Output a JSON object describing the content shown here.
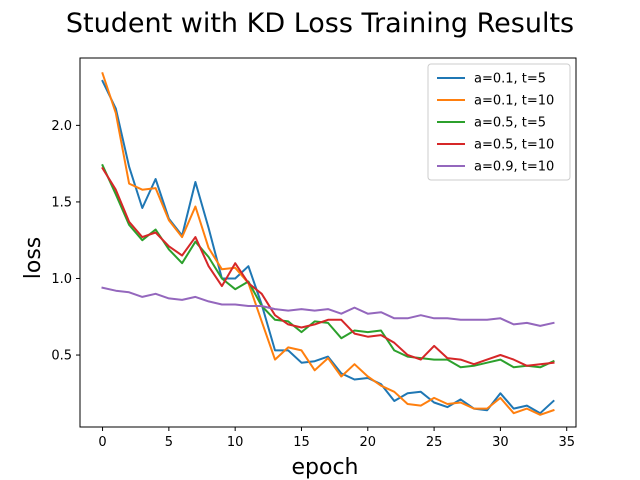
{
  "chart_data": {
    "type": "line",
    "title": "Student with KD Loss Training Results",
    "xlabel": "epoch",
    "ylabel": "loss",
    "xlim": [
      -1.7,
      35.7
    ],
    "ylim": [
      0.03,
      2.44
    ],
    "xticks": [
      0,
      5,
      10,
      15,
      20,
      25,
      30,
      35
    ],
    "yticks": [
      0.5,
      1.0,
      1.5,
      2.0
    ],
    "ytick_labels": [
      "0.5",
      "1.0",
      "1.5",
      "2.0"
    ],
    "grid": false,
    "legend_position": "top-right",
    "x": [
      0,
      1,
      2,
      3,
      4,
      5,
      6,
      7,
      8,
      9,
      10,
      11,
      12,
      13,
      14,
      15,
      16,
      17,
      18,
      19,
      20,
      21,
      22,
      23,
      24,
      25,
      26,
      27,
      28,
      29,
      30,
      31,
      32,
      33,
      34
    ],
    "series": [
      {
        "name": "a=0.1, t=5",
        "color": "#1f77b4",
        "values": [
          2.29,
          2.11,
          1.73,
          1.46,
          1.65,
          1.39,
          1.28,
          1.63,
          1.33,
          1.0,
          1.0,
          1.08,
          0.83,
          0.53,
          0.53,
          0.45,
          0.46,
          0.49,
          0.38,
          0.34,
          0.35,
          0.31,
          0.2,
          0.25,
          0.26,
          0.19,
          0.16,
          0.21,
          0.15,
          0.14,
          0.25,
          0.15,
          0.17,
          0.12,
          0.2
        ]
      },
      {
        "name": "a=0.1, t=10",
        "color": "#ff7f0e",
        "values": [
          2.34,
          2.08,
          1.62,
          1.58,
          1.59,
          1.38,
          1.27,
          1.47,
          1.2,
          1.06,
          1.07,
          0.97,
          0.72,
          0.47,
          0.55,
          0.53,
          0.4,
          0.48,
          0.36,
          0.44,
          0.36,
          0.3,
          0.26,
          0.18,
          0.17,
          0.22,
          0.18,
          0.19,
          0.15,
          0.15,
          0.22,
          0.12,
          0.15,
          0.11,
          0.14
        ]
      },
      {
        "name": "a=0.5, t=5",
        "color": "#2ca02c",
        "values": [
          1.74,
          1.55,
          1.35,
          1.25,
          1.32,
          1.19,
          1.1,
          1.24,
          1.14,
          1.0,
          0.93,
          0.98,
          0.82,
          0.73,
          0.72,
          0.65,
          0.72,
          0.71,
          0.61,
          0.66,
          0.65,
          0.66,
          0.53,
          0.49,
          0.48,
          0.47,
          0.47,
          0.42,
          0.43,
          0.45,
          0.47,
          0.42,
          0.43,
          0.42,
          0.46
        ]
      },
      {
        "name": "a=0.5, t=10",
        "color": "#d62728",
        "values": [
          1.72,
          1.58,
          1.37,
          1.27,
          1.3,
          1.21,
          1.15,
          1.27,
          1.08,
          0.95,
          1.1,
          0.97,
          0.9,
          0.76,
          0.7,
          0.68,
          0.7,
          0.73,
          0.73,
          0.64,
          0.62,
          0.63,
          0.58,
          0.5,
          0.47,
          0.56,
          0.48,
          0.47,
          0.44,
          0.47,
          0.5,
          0.47,
          0.43,
          0.44,
          0.45
        ]
      },
      {
        "name": "a=0.9, t=10",
        "color": "#9467bd",
        "values": [
          0.94,
          0.92,
          0.91,
          0.88,
          0.9,
          0.87,
          0.86,
          0.88,
          0.85,
          0.83,
          0.83,
          0.82,
          0.82,
          0.8,
          0.79,
          0.8,
          0.79,
          0.8,
          0.77,
          0.81,
          0.77,
          0.78,
          0.74,
          0.74,
          0.76,
          0.74,
          0.74,
          0.73,
          0.73,
          0.73,
          0.74,
          0.7,
          0.71,
          0.69,
          0.71
        ]
      }
    ]
  }
}
